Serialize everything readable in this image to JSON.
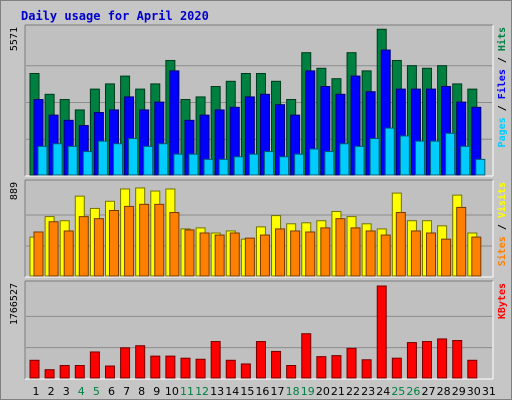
{
  "chart_data": [
    {
      "type": "bar",
      "title": "Daily usage for April 2020",
      "ylabel_parts": [
        {
          "text": "Pages",
          "color": "#00ccff"
        },
        {
          "text": " / ",
          "color": "#000000"
        },
        {
          "text": "Files",
          "color": "#0000ff"
        },
        {
          "text": " / ",
          "color": "#000000"
        },
        {
          "text": "Hits",
          "color": "#008040"
        }
      ],
      "max_label": "5571",
      "ylim": [
        0,
        5571
      ],
      "series": [
        {
          "name": "Hits",
          "color": "#008040",
          "values": [
            3900,
            3100,
            2900,
            2500,
            3300,
            3500,
            3800,
            3300,
            3500,
            4400,
            2900,
            3000,
            3400,
            3600,
            3900,
            3900,
            3600,
            2900,
            4700,
            4100,
            3700,
            4700,
            4000,
            5600,
            4400,
            4200,
            4100,
            4200,
            3500,
            3300
          ]
        },
        {
          "name": "Files",
          "color": "#0000ff",
          "values": [
            2900,
            2300,
            2100,
            1900,
            2400,
            2500,
            3000,
            2500,
            2800,
            4000,
            2100,
            2300,
            2500,
            2600,
            3000,
            3100,
            2700,
            2300,
            4000,
            3400,
            3100,
            3800,
            3200,
            4800,
            3300,
            3300,
            3300,
            3400,
            2800,
            2600
          ]
        },
        {
          "name": "Pages",
          "color": "#00ccff",
          "values": [
            1100,
            1200,
            1100,
            900,
            1300,
            1200,
            1400,
            1100,
            1200,
            800,
            800,
            600,
            600,
            700,
            800,
            900,
            700,
            800,
            1000,
            900,
            1200,
            1100,
            1400,
            1800,
            1500,
            1300,
            1300,
            1600,
            1100,
            600
          ]
        }
      ]
    },
    {
      "type": "bar",
      "ylabel_parts": [
        {
          "text": "Sites",
          "color": "#ff8000"
        },
        {
          "text": " / ",
          "color": "#000000"
        },
        {
          "text": "Visits",
          "color": "#ffff00"
        }
      ],
      "max_label": "889",
      "ylim": [
        0,
        889
      ],
      "series": [
        {
          "name": "Visits",
          "color": "#ffff00",
          "values": [
            380,
            580,
            540,
            780,
            660,
            730,
            850,
            860,
            830,
            850,
            460,
            470,
            420,
            440,
            360,
            480,
            590,
            510,
            520,
            540,
            630,
            580,
            510,
            460,
            810,
            540,
            540,
            490,
            790,
            420
          ]
        },
        {
          "name": "Sites",
          "color": "#ff8000",
          "values": [
            430,
            530,
            440,
            580,
            560,
            640,
            680,
            700,
            700,
            620,
            450,
            420,
            400,
            420,
            370,
            400,
            460,
            440,
            430,
            470,
            560,
            470,
            440,
            400,
            620,
            440,
            420,
            360,
            670,
            380
          ]
        }
      ]
    },
    {
      "type": "bar",
      "ylabel_parts": [
        {
          "text": "KBytes",
          "color": "#ff0000"
        }
      ],
      "max_label": "1766527",
      "ylim": [
        0,
        1766527
      ],
      "series": [
        {
          "name": "KBytes",
          "color": "#ff0000",
          "values": [
            340000,
            160000,
            240000,
            240000,
            500000,
            230000,
            580000,
            620000,
            420000,
            420000,
            380000,
            360000,
            700000,
            340000,
            270000,
            700000,
            510000,
            240000,
            850000,
            410000,
            430000,
            570000,
            350000,
            1766527,
            380000,
            680000,
            700000,
            750000,
            720000,
            340000
          ]
        }
      ]
    }
  ],
  "x_axis": {
    "days": [
      "1",
      "2",
      "3",
      "4",
      "5",
      "6",
      "7",
      "8",
      "9",
      "10",
      "11",
      "12",
      "13",
      "14",
      "15",
      "16",
      "17",
      "18",
      "19",
      "20",
      "21",
      "22",
      "23",
      "24",
      "25",
      "26",
      "27",
      "28",
      "29",
      "30",
      "31"
    ],
    "weekend_days": [
      4,
      5,
      11,
      12,
      18,
      19,
      25,
      26
    ],
    "weekday_color": "#000000",
    "weekend_color": "#008040"
  }
}
